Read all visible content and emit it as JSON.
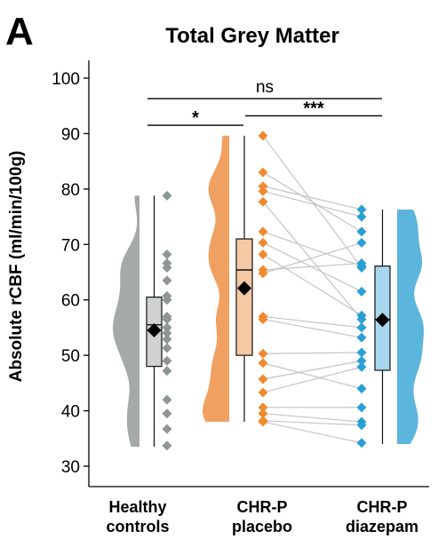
{
  "panel_letter": "A",
  "chart_data": {
    "type": "raincloud",
    "title": "Total Grey Matter",
    "ylabel": "Absolute rCBF (ml/min/100g)",
    "xlabel": "",
    "ylim": [
      30,
      100
    ],
    "yticks": [
      30,
      40,
      50,
      60,
      70,
      80,
      90,
      100
    ],
    "categories": [
      {
        "line1": "Healthy",
        "line2": "controls"
      },
      {
        "line1": "CHR-P",
        "line2": "placebo"
      },
      {
        "line1": "CHR-P",
        "line2": "diazepam"
      }
    ],
    "colors": {
      "healthy": "#a3aaa8",
      "healthy_box": "#cfd2d1",
      "healthy_point": "#8e9694",
      "placebo": "#f0a060",
      "placebo_box": "#f5c9a4",
      "placebo_point": "#f08a30",
      "diazepam": "#5cb5dc",
      "diazepam_box": "#a8d6ee",
      "diazepam_point": "#2a9fd6",
      "mean": "#000000",
      "pair_line": "#c4c4c4"
    },
    "series": [
      {
        "points": [
          78.8,
          68.2,
          66.6,
          65.8,
          63.5,
          60.7,
          60.0,
          57.0,
          56.5,
          55.0,
          54.0,
          52.9,
          51.3,
          49.0,
          47.2,
          42.0,
          39.5,
          36.7,
          33.7
        ],
        "box": {
          "q1": 48.0,
          "median": 55.5,
          "q3": 60.5,
          "min": 33.5,
          "max": 78.8
        },
        "mean": 54.5
      },
      {
        "points": [
          89.6,
          83.0,
          80.5,
          79.6,
          77.7,
          72.3,
          70.3,
          68.2,
          65.4,
          64.8,
          57.0,
          56.5,
          50.3,
          48.6,
          45.7,
          43.3,
          40.6,
          39.5,
          38.2,
          38.0
        ],
        "box": {
          "q1": 50.0,
          "median": 65.4,
          "q3": 71.0,
          "min": 38.0,
          "max": 89.6
        },
        "mean": 62.1
      },
      {
        "points": [
          76.3,
          75.0,
          72.3,
          70.3,
          66.6,
          66.1,
          65.8,
          61.5,
          57.2,
          56.5,
          55.0,
          53.2,
          50.5,
          49.0,
          47.9,
          44.0,
          40.6,
          38.0,
          37.4,
          34.2
        ],
        "box": {
          "q1": 47.3,
          "median": 56.5,
          "q3": 66.1,
          "min": 34.0,
          "max": 76.3
        },
        "mean": 56.4
      }
    ],
    "pairs": [
      [
        89.6,
        65.8
      ],
      [
        83.0,
        72.3
      ],
      [
        80.5,
        76.3
      ],
      [
        79.6,
        75.0
      ],
      [
        77.7,
        56.5
      ],
      [
        72.3,
        66.1
      ],
      [
        70.3,
        61.5
      ],
      [
        68.2,
        57.2
      ],
      [
        65.4,
        66.6
      ],
      [
        64.8,
        70.3
      ],
      [
        57.0,
        55.0
      ],
      [
        56.5,
        53.2
      ],
      [
        50.3,
        50.5
      ],
      [
        48.6,
        44.0
      ],
      [
        45.7,
        49.0
      ],
      [
        43.3,
        47.9
      ],
      [
        40.6,
        40.6
      ],
      [
        39.5,
        38.0
      ],
      [
        38.2,
        37.4
      ],
      [
        38.0,
        34.2
      ]
    ],
    "comparisons": [
      {
        "from": 0,
        "to": 2,
        "y": 96.3,
        "label": "ns"
      },
      {
        "from": 0,
        "to": 1,
        "y": 91.5,
        "label": "*"
      },
      {
        "from": 1,
        "to": 2,
        "y": 93.2,
        "label": "***"
      }
    ]
  }
}
